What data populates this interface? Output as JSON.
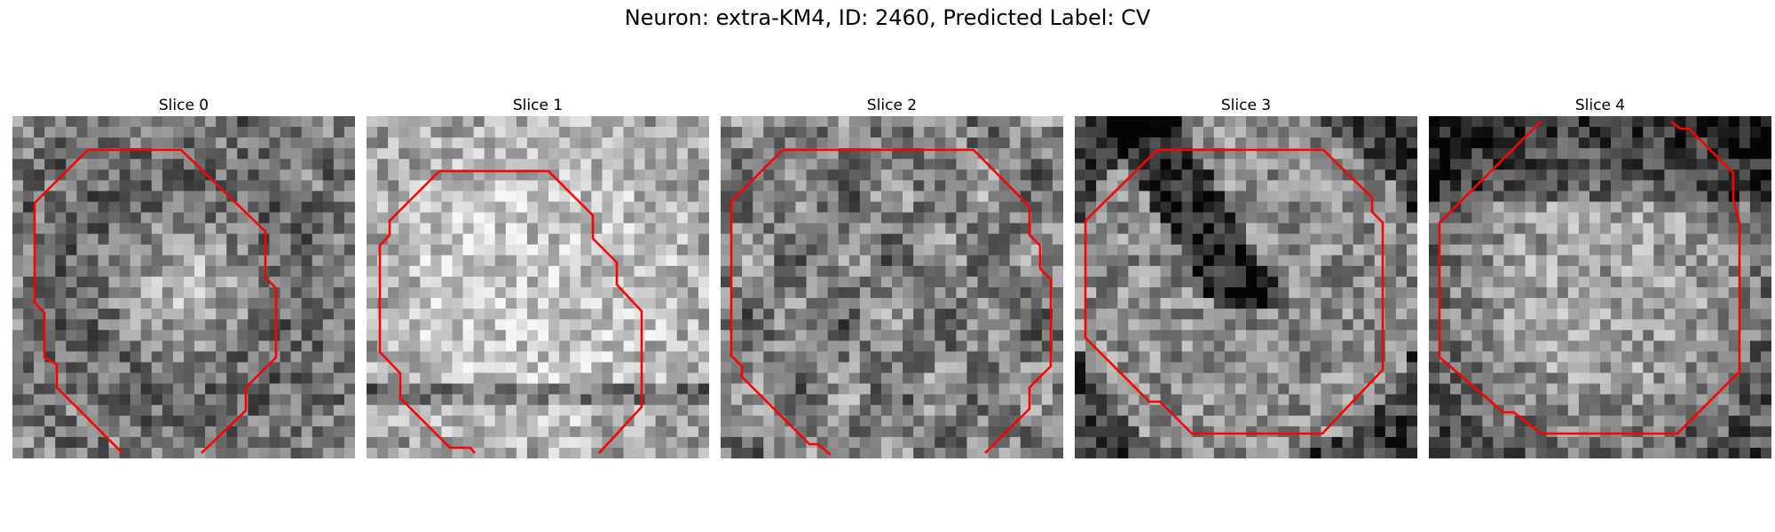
{
  "figure": {
    "title": "Neuron: extra-KM4, ID: 2460, Predicted Label: CV"
  },
  "contour_color": "#ff0000",
  "colormap": "gray",
  "slices": [
    {
      "title": "Slice 0",
      "seed": 11,
      "center_brightness": 0.62,
      "pattern": "ring"
    },
    {
      "title": "Slice 1",
      "seed": 23,
      "center_brightness": 0.78,
      "pattern": "bright"
    },
    {
      "title": "Slice 2",
      "seed": 37,
      "center_brightness": 0.55,
      "pattern": "mottled"
    },
    {
      "title": "Slice 3",
      "seed": 41,
      "center_brightness": 0.5,
      "pattern": "dark-band"
    },
    {
      "title": "Slice 4",
      "seed": 59,
      "center_brightness": 0.55,
      "pattern": "vignette"
    }
  ]
}
